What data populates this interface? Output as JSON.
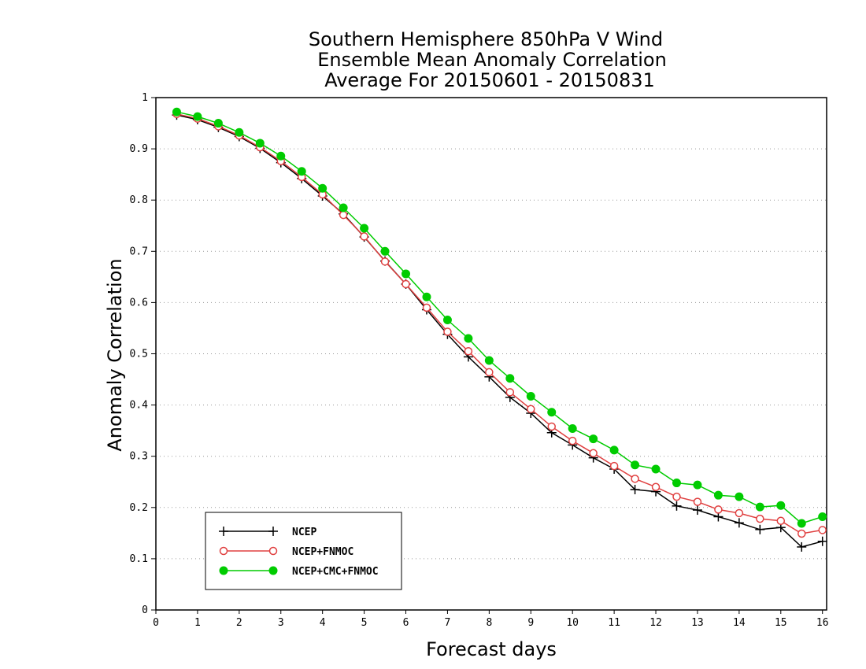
{
  "chart_data": {
    "type": "line",
    "title": [
      "Southern Hemisphere 850hPa V Wind",
      "Ensemble Mean Anomaly Correlation",
      "Average For 20150601 - 20150831"
    ],
    "xlabel": "Forecast days",
    "ylabel": "Anomaly Correlation",
    "xlim": [
      0,
      16.1
    ],
    "ylim": [
      0,
      1
    ],
    "xticks": [
      0,
      1,
      2,
      3,
      4,
      5,
      6,
      7,
      8,
      9,
      10,
      11,
      12,
      13,
      14,
      15,
      16
    ],
    "yticks": [
      0,
      0.1,
      0.2,
      0.3,
      0.4,
      0.5,
      0.6,
      0.7,
      0.8,
      0.9,
      1
    ],
    "ytick_labels": [
      "0",
      "0.1",
      "0.2",
      "0.3",
      "0.4",
      "0.5",
      "0.6",
      "0.7",
      "0.8",
      "0.9",
      "1"
    ],
    "grid": "horizontal dotted",
    "legend_position": "bottom-left",
    "x": [
      0.5,
      1,
      1.5,
      2,
      2.5,
      3,
      3.5,
      4,
      4.5,
      5,
      5.5,
      6,
      6.5,
      7,
      7.5,
      8,
      8.5,
      9,
      9.5,
      10,
      10.5,
      11,
      11.5,
      12,
      12.5,
      13,
      13.5,
      14,
      14.5,
      15,
      15.5,
      16
    ],
    "series": [
      {
        "name": "NCEP",
        "color": "#000000",
        "marker": "plus",
        "values": [
          0.966,
          0.957,
          0.942,
          0.924,
          0.901,
          0.873,
          0.842,
          0.808,
          0.773,
          0.728,
          0.681,
          0.636,
          0.586,
          0.538,
          0.494,
          0.455,
          0.415,
          0.384,
          0.346,
          0.322,
          0.297,
          0.275,
          0.235,
          0.231,
          0.203,
          0.195,
          0.182,
          0.17,
          0.157,
          0.161,
          0.123,
          0.134
        ]
      },
      {
        "name": "NCEP+FNMOC",
        "color": "#e04040",
        "marker": "open-circle",
        "values": [
          0.968,
          0.959,
          0.944,
          0.926,
          0.903,
          0.876,
          0.845,
          0.811,
          0.771,
          0.729,
          0.68,
          0.636,
          0.59,
          0.543,
          0.505,
          0.464,
          0.425,
          0.392,
          0.358,
          0.33,
          0.306,
          0.281,
          0.256,
          0.24,
          0.221,
          0.211,
          0.196,
          0.189,
          0.178,
          0.174,
          0.149,
          0.156
        ]
      },
      {
        "name": "NCEP+CMC+FNMOC",
        "color": "#00cc00",
        "marker": "filled-circle",
        "values": [
          0.972,
          0.963,
          0.95,
          0.932,
          0.911,
          0.886,
          0.856,
          0.823,
          0.785,
          0.745,
          0.7,
          0.656,
          0.611,
          0.566,
          0.53,
          0.487,
          0.452,
          0.417,
          0.386,
          0.354,
          0.334,
          0.312,
          0.283,
          0.275,
          0.248,
          0.244,
          0.224,
          0.221,
          0.201,
          0.204,
          0.169,
          0.182
        ]
      }
    ]
  }
}
